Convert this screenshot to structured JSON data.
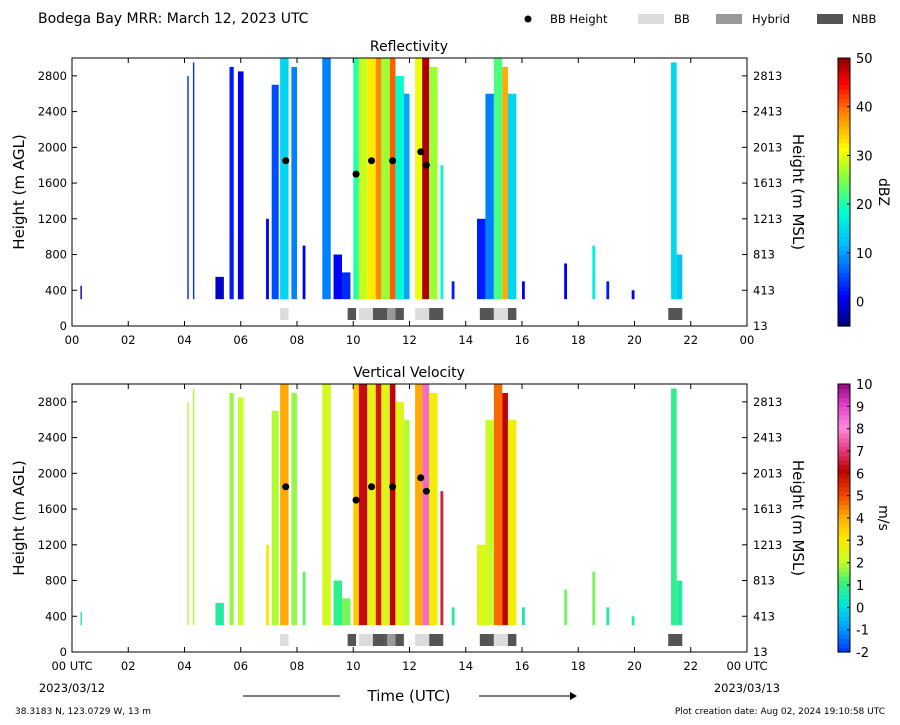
{
  "figure": {
    "title": "Bodega Bay MRR:  March 12, 2023 UTC",
    "legend": [
      {
        "label": "BB Height",
        "marker": "dot",
        "color": "#000000"
      },
      {
        "label": "BB",
        "marker": "box",
        "color": "#dcdcdc"
      },
      {
        "label": "Hybrid",
        "marker": "box",
        "color": "#999999"
      },
      {
        "label": "NBB",
        "marker": "box",
        "color": "#555555"
      }
    ],
    "xlabel": "Time (UTC)",
    "x_start_label": "00 UTC",
    "x_end_label": "00 UTC",
    "x_start_date": "2023/03/12",
    "x_end_date": "2023/03/13",
    "location": "38.3183 N, 123.0729 W, 13 m",
    "creation": "Plot creation date: Aug 02, 2024 19:10:58 UTC"
  },
  "chart_data": [
    {
      "type": "heatmap",
      "title": "Reflectivity",
      "ylabel": "Height (m AGL)",
      "y2label": "Height (m MSL)",
      "xlim": [
        0,
        24
      ],
      "ylim": [
        0,
        3000
      ],
      "x_ticks": [
        "00",
        "02",
        "04",
        "06",
        "08",
        "10",
        "12",
        "14",
        "16",
        "18",
        "20",
        "22",
        "00"
      ],
      "y_ticks": [
        0,
        400,
        800,
        1200,
        1600,
        2000,
        2400,
        2800
      ],
      "y2_ticks": [
        13,
        413,
        813,
        1213,
        1613,
        2013,
        2413,
        2813
      ],
      "colorbar": {
        "label": "dBZ",
        "min": -5,
        "max": 50,
        "ticks": [
          0,
          10,
          20,
          30,
          40,
          50
        ]
      },
      "bright_band_heights": [
        {
          "x": 7.6,
          "y": 1850
        },
        {
          "x": 10.1,
          "y": 1700
        },
        {
          "x": 10.65,
          "y": 1850
        },
        {
          "x": 11.4,
          "y": 1850
        },
        {
          "x": 12.4,
          "y": 1950
        },
        {
          "x": 12.6,
          "y": 1800
        }
      ],
      "classification": [
        {
          "start": 7.4,
          "end": 7.7,
          "class": "BB"
        },
        {
          "start": 9.8,
          "end": 10.1,
          "class": "NBB"
        },
        {
          "start": 10.2,
          "end": 10.7,
          "class": "BB"
        },
        {
          "start": 10.7,
          "end": 11.2,
          "class": "NBB"
        },
        {
          "start": 11.2,
          "end": 11.5,
          "class": "Hybrid"
        },
        {
          "start": 11.5,
          "end": 11.8,
          "class": "NBB"
        },
        {
          "start": 12.2,
          "end": 12.7,
          "class": "BB"
        },
        {
          "start": 12.7,
          "end": 13.2,
          "class": "NBB"
        },
        {
          "start": 14.5,
          "end": 15.0,
          "class": "NBB"
        },
        {
          "start": 15.0,
          "end": 15.5,
          "class": "BB"
        },
        {
          "start": 15.5,
          "end": 15.8,
          "class": "NBB"
        },
        {
          "start": 21.2,
          "end": 21.7,
          "class": "NBB"
        }
      ],
      "precip_columns": [
        {
          "start": 0.3,
          "end": 0.35,
          "top": 450,
          "value": -3
        },
        {
          "start": 4.1,
          "end": 4.15,
          "top": 2800,
          "value": 3
        },
        {
          "start": 4.3,
          "end": 4.35,
          "top": 2950,
          "value": 3
        },
        {
          "start": 5.1,
          "end": 5.4,
          "top": 550,
          "value": -2
        },
        {
          "start": 5.6,
          "end": 5.75,
          "top": 2900,
          "value": 2
        },
        {
          "start": 5.9,
          "end": 6.1,
          "top": 2850,
          "value": 0
        },
        {
          "start": 5.9,
          "end": 6.0,
          "top": 1000,
          "value": -1
        },
        {
          "start": 6.9,
          "end": 7.0,
          "top": 1200,
          "value": 0
        },
        {
          "start": 7.1,
          "end": 7.35,
          "top": 2700,
          "value": 5
        },
        {
          "start": 7.4,
          "end": 7.7,
          "top": 3000,
          "value": 14
        },
        {
          "start": 7.8,
          "end": 8.0,
          "top": 2900,
          "value": 8
        },
        {
          "start": 8.2,
          "end": 8.3,
          "top": 900,
          "value": 0
        },
        {
          "start": 8.9,
          "end": 9.2,
          "top": 3000,
          "value": 8
        },
        {
          "start": 9.3,
          "end": 9.6,
          "top": 800,
          "value": 0
        },
        {
          "start": 9.6,
          "end": 9.9,
          "top": 600,
          "value": 3
        },
        {
          "start": 10.0,
          "end": 10.2,
          "top": 3000,
          "value": 20
        },
        {
          "start": 10.2,
          "end": 10.5,
          "top": 3000,
          "value": 28
        },
        {
          "start": 10.5,
          "end": 10.8,
          "top": 3000,
          "value": 32
        },
        {
          "start": 10.8,
          "end": 11.0,
          "top": 3000,
          "value": 38
        },
        {
          "start": 11.0,
          "end": 11.3,
          "top": 3000,
          "value": 26
        },
        {
          "start": 11.3,
          "end": 11.5,
          "top": 3000,
          "value": 40
        },
        {
          "start": 11.5,
          "end": 11.8,
          "top": 2800,
          "value": 18
        },
        {
          "start": 11.8,
          "end": 12.0,
          "top": 2600,
          "value": 10
        },
        {
          "start": 12.2,
          "end": 12.45,
          "top": 3000,
          "value": 30
        },
        {
          "start": 12.45,
          "end": 12.7,
          "top": 3000,
          "value": 48
        },
        {
          "start": 12.7,
          "end": 13.0,
          "top": 2900,
          "value": 26
        },
        {
          "start": 13.1,
          "end": 13.2,
          "top": 1800,
          "value": 18
        },
        {
          "start": 13.5,
          "end": 13.6,
          "top": 500,
          "value": 2
        },
        {
          "start": 14.4,
          "end": 14.7,
          "top": 1200,
          "value": 2
        },
        {
          "start": 14.7,
          "end": 15.0,
          "top": 2600,
          "value": 8
        },
        {
          "start": 15.0,
          "end": 15.3,
          "top": 3000,
          "value": 22
        },
        {
          "start": 15.3,
          "end": 15.5,
          "top": 2900,
          "value": 36
        },
        {
          "start": 15.5,
          "end": 15.8,
          "top": 2600,
          "value": 14
        },
        {
          "start": 16.0,
          "end": 16.1,
          "top": 500,
          "value": 0
        },
        {
          "start": 17.5,
          "end": 17.6,
          "top": 700,
          "value": 0
        },
        {
          "start": 18.5,
          "end": 18.6,
          "top": 900,
          "value": 17
        },
        {
          "start": 19.0,
          "end": 19.1,
          "top": 500,
          "value": 2
        },
        {
          "start": 19.9,
          "end": 20.0,
          "top": 400,
          "value": 0
        },
        {
          "start": 21.3,
          "end": 21.5,
          "top": 2950,
          "value": 14
        },
        {
          "start": 21.5,
          "end": 21.7,
          "top": 800,
          "value": 12
        }
      ]
    },
    {
      "type": "heatmap",
      "title": "Vertical Velocity",
      "ylabel": "Height (m AGL)",
      "y2label": "Height (m MSL)",
      "xlim": [
        0,
        24
      ],
      "ylim": [
        0,
        3000
      ],
      "x_ticks": [
        "00 UTC",
        "02",
        "04",
        "06",
        "08",
        "10",
        "12",
        "14",
        "16",
        "18",
        "20",
        "22",
        "00 UTC"
      ],
      "y_ticks": [
        0,
        400,
        800,
        1200,
        1600,
        2000,
        2400,
        2800
      ],
      "y2_ticks": [
        13,
        413,
        813,
        1213,
        1613,
        2013,
        2413,
        2813
      ],
      "colorbar": {
        "label": "m/s",
        "min": -2,
        "max": 10,
        "ticks": [
          -2,
          -1,
          0,
          1,
          2,
          3,
          4,
          5,
          6,
          7,
          8,
          9,
          10
        ]
      },
      "bright_band_heights": [
        {
          "x": 7.6,
          "y": 1850
        },
        {
          "x": 10.1,
          "y": 1700
        },
        {
          "x": 10.65,
          "y": 1850
        },
        {
          "x": 11.4,
          "y": 1850
        },
        {
          "x": 12.4,
          "y": 1950
        },
        {
          "x": 12.6,
          "y": 1800
        }
      ],
      "classification": [
        {
          "start": 7.4,
          "end": 7.7,
          "class": "BB"
        },
        {
          "start": 9.8,
          "end": 10.1,
          "class": "NBB"
        },
        {
          "start": 10.2,
          "end": 10.7,
          "class": "BB"
        },
        {
          "start": 10.7,
          "end": 11.2,
          "class": "NBB"
        },
        {
          "start": 11.2,
          "end": 11.5,
          "class": "Hybrid"
        },
        {
          "start": 11.5,
          "end": 11.8,
          "class": "NBB"
        },
        {
          "start": 12.2,
          "end": 12.7,
          "class": "BB"
        },
        {
          "start": 12.7,
          "end": 13.2,
          "class": "NBB"
        },
        {
          "start": 14.5,
          "end": 15.0,
          "class": "NBB"
        },
        {
          "start": 15.0,
          "end": 15.5,
          "class": "BB"
        },
        {
          "start": 15.5,
          "end": 15.8,
          "class": "NBB"
        },
        {
          "start": 21.2,
          "end": 21.7,
          "class": "NBB"
        }
      ],
      "precip_columns": [
        {
          "start": 0.3,
          "end": 0.35,
          "top": 450,
          "value": 0.5
        },
        {
          "start": 4.1,
          "end": 4.15,
          "top": 2800,
          "value": 1.8
        },
        {
          "start": 4.3,
          "end": 4.35,
          "top": 2950,
          "value": 1.8
        },
        {
          "start": 5.1,
          "end": 5.4,
          "top": 550,
          "value": 0.6
        },
        {
          "start": 5.6,
          "end": 5.75,
          "top": 2900,
          "value": 1.6
        },
        {
          "start": 5.9,
          "end": 6.1,
          "top": 2850,
          "value": 2.0
        },
        {
          "start": 6.9,
          "end": 7.0,
          "top": 1200,
          "value": 3.0
        },
        {
          "start": 7.1,
          "end": 7.35,
          "top": 2700,
          "value": 1.8
        },
        {
          "start": 7.4,
          "end": 7.7,
          "top": 3000,
          "value": 4.0
        },
        {
          "start": 7.8,
          "end": 8.0,
          "top": 2900,
          "value": 1.6
        },
        {
          "start": 8.2,
          "end": 8.3,
          "top": 900,
          "value": 1.2
        },
        {
          "start": 8.9,
          "end": 9.2,
          "top": 3000,
          "value": 2.2
        },
        {
          "start": 9.3,
          "end": 9.6,
          "top": 800,
          "value": 0.8
        },
        {
          "start": 9.6,
          "end": 9.9,
          "top": 600,
          "value": 1.4
        },
        {
          "start": 10.0,
          "end": 10.2,
          "top": 3000,
          "value": 3.5
        },
        {
          "start": 10.2,
          "end": 10.5,
          "top": 3000,
          "value": 6.2
        },
        {
          "start": 10.5,
          "end": 10.8,
          "top": 3000,
          "value": 2.5
        },
        {
          "start": 10.8,
          "end": 11.0,
          "top": 3000,
          "value": 5.6
        },
        {
          "start": 11.0,
          "end": 11.3,
          "top": 3000,
          "value": 2.4
        },
        {
          "start": 11.3,
          "end": 11.5,
          "top": 3000,
          "value": 6.0
        },
        {
          "start": 11.5,
          "end": 11.8,
          "top": 2800,
          "value": 2.4
        },
        {
          "start": 11.8,
          "end": 12.0,
          "top": 2600,
          "value": 1.8
        },
        {
          "start": 12.2,
          "end": 12.45,
          "top": 3000,
          "value": 4.0
        },
        {
          "start": 12.45,
          "end": 12.7,
          "top": 3000,
          "value": 7.6
        },
        {
          "start": 12.7,
          "end": 13.0,
          "top": 2900,
          "value": 2.8
        },
        {
          "start": 13.1,
          "end": 13.2,
          "top": 1800,
          "value": 6.5
        },
        {
          "start": 13.5,
          "end": 13.6,
          "top": 500,
          "value": 0.6
        },
        {
          "start": 14.4,
          "end": 14.7,
          "top": 1200,
          "value": 2.4
        },
        {
          "start": 14.7,
          "end": 15.0,
          "top": 2600,
          "value": 2.0
        },
        {
          "start": 15.0,
          "end": 15.3,
          "top": 3000,
          "value": 4.6
        },
        {
          "start": 15.3,
          "end": 15.5,
          "top": 2900,
          "value": 6.0
        },
        {
          "start": 15.5,
          "end": 15.8,
          "top": 2600,
          "value": 2.8
        },
        {
          "start": 16.0,
          "end": 16.1,
          "top": 500,
          "value": 0.4
        },
        {
          "start": 17.5,
          "end": 17.6,
          "top": 700,
          "value": 1.4
        },
        {
          "start": 18.5,
          "end": 18.6,
          "top": 900,
          "value": 1.4
        },
        {
          "start": 19.0,
          "end": 19.1,
          "top": 500,
          "value": 0.6
        },
        {
          "start": 19.9,
          "end": 20.0,
          "top": 400,
          "value": 0.6
        },
        {
          "start": 21.3,
          "end": 21.5,
          "top": 2950,
          "value": 0.8
        },
        {
          "start": 21.5,
          "end": 21.7,
          "top": 800,
          "value": 0.6
        }
      ]
    }
  ]
}
